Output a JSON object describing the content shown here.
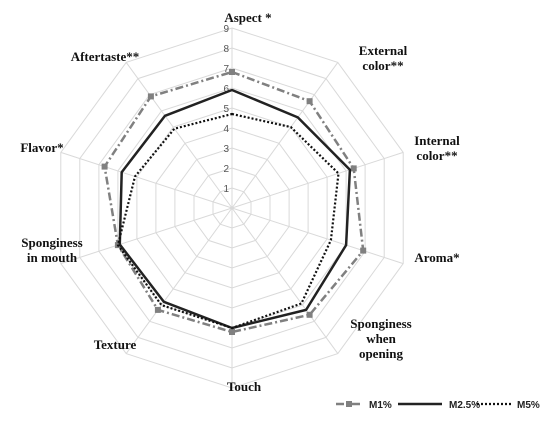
{
  "chart_data": {
    "type": "radar",
    "categories": [
      "Aspect *",
      "External color**",
      "Internal color**",
      "Aroma*",
      "Sponginess when opening",
      "Touch",
      "Texture",
      "Sponginess in mouth",
      "Flavor*",
      "Aftertaste**"
    ],
    "scale": {
      "min": 0,
      "max": 9,
      "ticks": [
        "1",
        "2",
        "3",
        "4",
        "5",
        "6",
        "7",
        "8",
        "9"
      ]
    },
    "grid": true,
    "legend_position": "bottom-right",
    "series": [
      {
        "name": "M1%",
        "color": "#808080",
        "dash": "dash-dot",
        "marker": "square",
        "values": [
          6.8,
          6.6,
          6.4,
          6.9,
          6.6,
          6.2,
          6.3,
          6.0,
          6.7,
          6.9
        ]
      },
      {
        "name": "M2.5%",
        "color": "#222222",
        "dash": "solid",
        "marker": "none",
        "values": [
          5.9,
          5.6,
          6.2,
          6.0,
          6.3,
          6.0,
          5.8,
          5.9,
          5.8,
          5.7
        ]
      },
      {
        "name": "M5%",
        "color": "#111111",
        "dash": "dotted",
        "marker": "none",
        "values": [
          4.7,
          5.0,
          5.6,
          5.2,
          5.9,
          6.0,
          6.0,
          6.0,
          5.1,
          4.9
        ]
      }
    ]
  }
}
